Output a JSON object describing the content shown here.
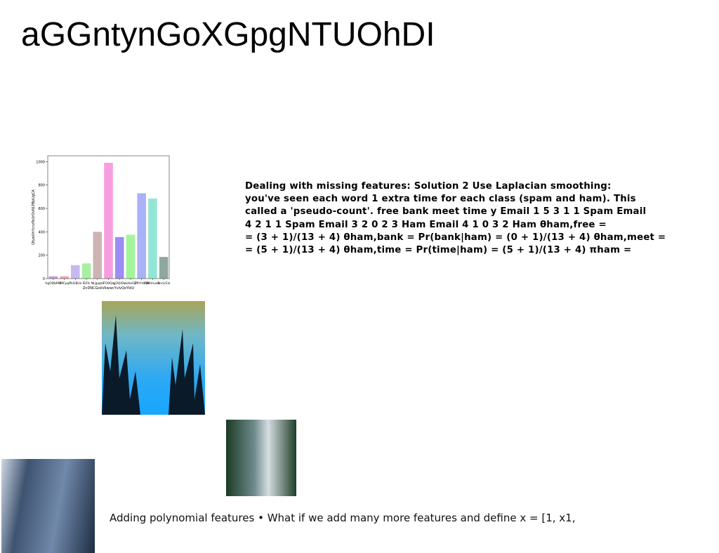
{
  "title": "aGGntynGoXGpgNTUOhDI",
  "chart_data": {
    "type": "bar",
    "ylabel": "QfywUhYcnzTeUrDvNLPBpUgCA",
    "xlabel": "ZnDNCGokVkwwcYvlvQxYldU",
    "categories": [
      "hgODbMG",
      "lMCpq",
      "PkGBUz",
      "IEEfc",
      "NLJpqzo",
      "TOOQx",
      "gOQlOx",
      "oohoOZ",
      "ZfhYdBW",
      "SWmuvA",
      "SnrLrEsl"
    ],
    "values": [
      20,
      20,
      115,
      130,
      400,
      990,
      355,
      375,
      730,
      685,
      185
    ],
    "colors": [
      "#c9a0dc",
      "#f4a6a6",
      "#c7b8f2",
      "#a8f0a0",
      "#cdb4b4",
      "#f79ee0",
      "#9b8df2",
      "#a3f59a",
      "#a9b2f7",
      "#93e6d6",
      "#8fa89e"
    ],
    "ylim": [
      0,
      1050
    ],
    "yticks": [
      0,
      200,
      400,
      600,
      800,
      1000
    ]
  },
  "paragraph": [
    "Dealing with missing features: Solution 2 Use Laplacian smoothing:",
    "you've seen each word 1 extra time for each class (spam and ham). This",
    "called a 'pseudo-count'. free bank meet time y Email 1 5 3 1 1 Spam Email",
    "4 2 1 1 Spam Email 3 2 0 2 3 Ham Email 4 1 0 3 2 Ham θham,free =",
    "= (3 + 1)/(13 + 4) θham,bank = Pr(bank|ham) = (0 + 1)/(13 + 4) θham,meet =",
    "= (5 + 1)/(13 + 4) θham,time = Pr(time|ham) = (5 + 1)/(13 + 4) πham ="
  ],
  "caption": "Adding polynomial features • What if we add many more features and define x = [1, x1,"
}
